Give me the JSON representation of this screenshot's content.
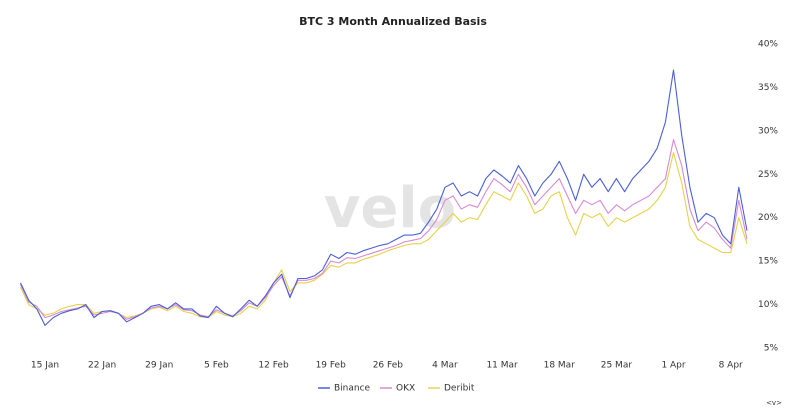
{
  "chart_data": {
    "type": "line",
    "title": "BTC 3 Month Annualized Basis",
    "watermark": "velo",
    "footer_mark": "<v>",
    "categories": [
      null,
      null,
      null,
      "15 Jan",
      null,
      null,
      null,
      null,
      null,
      null,
      "22 Jan",
      null,
      null,
      null,
      null,
      null,
      null,
      "29 Jan",
      null,
      null,
      null,
      null,
      null,
      null,
      "5 Feb",
      null,
      null,
      null,
      null,
      null,
      null,
      "12 Feb",
      null,
      null,
      null,
      null,
      null,
      null,
      "19 Feb",
      null,
      null,
      null,
      null,
      null,
      null,
      "26 Feb",
      null,
      null,
      null,
      null,
      null,
      null,
      "4 Mar",
      null,
      null,
      null,
      null,
      null,
      null,
      "11 Mar",
      null,
      null,
      null,
      null,
      null,
      null,
      "18 Mar",
      null,
      null,
      null,
      null,
      null,
      null,
      "25 Mar",
      null,
      null,
      null,
      null,
      null,
      null,
      "1 Apr",
      null,
      null,
      null,
      null,
      null,
      null,
      "8 Apr",
      null,
      null
    ],
    "series": [
      {
        "name": "Binance",
        "color": "#4a5fd8",
        "values": [
          12.5,
          10.5,
          9.5,
          7.6,
          8.5,
          9.0,
          9.3,
          9.5,
          10.0,
          8.5,
          9.2,
          9.3,
          9.0,
          8.0,
          8.5,
          9.0,
          9.8,
          10.0,
          9.5,
          10.2,
          9.5,
          9.5,
          8.7,
          8.5,
          9.8,
          9.0,
          8.6,
          9.5,
          10.5,
          9.8,
          11.0,
          12.5,
          13.5,
          10.8,
          13.0,
          13.0,
          13.3,
          14.0,
          15.8,
          15.3,
          16.0,
          15.8,
          16.2,
          16.5,
          16.8,
          17.0,
          17.5,
          18.0,
          18.0,
          18.2,
          19.5,
          21.0,
          23.5,
          24.0,
          22.5,
          23.0,
          22.5,
          24.5,
          25.5,
          24.8,
          24.0,
          26.0,
          24.5,
          22.5,
          24.0,
          25.0,
          26.5,
          24.5,
          22.0,
          25.0,
          23.5,
          24.5,
          23.0,
          24.5,
          23.0,
          24.5,
          25.5,
          26.5,
          28.0,
          31.0,
          37.0,
          29.5,
          23.5,
          19.5,
          20.5,
          20.0,
          18.0,
          17.0,
          23.5,
          18.5
        ]
      },
      {
        "name": "OKX",
        "color": "#d98ad4",
        "values": [
          12.3,
          10.3,
          9.8,
          8.5,
          8.8,
          9.2,
          9.4,
          9.6,
          9.8,
          8.8,
          9.0,
          9.2,
          9.0,
          8.3,
          8.6,
          9.0,
          9.6,
          9.8,
          9.5,
          10.0,
          9.4,
          9.3,
          8.8,
          8.6,
          9.4,
          9.0,
          8.7,
          9.3,
          10.2,
          9.8,
          10.8,
          12.2,
          13.2,
          11.0,
          12.8,
          12.8,
          13.0,
          13.6,
          15.0,
          14.8,
          15.4,
          15.3,
          15.6,
          15.9,
          16.2,
          16.5,
          16.8,
          17.2,
          17.4,
          17.6,
          18.5,
          19.8,
          22.0,
          22.5,
          21.0,
          21.5,
          21.2,
          23.0,
          24.5,
          23.8,
          23.0,
          25.0,
          23.5,
          21.5,
          22.5,
          23.5,
          24.5,
          22.5,
          20.5,
          22.0,
          21.5,
          22.0,
          20.5,
          21.5,
          20.8,
          21.5,
          22.0,
          22.5,
          23.5,
          24.5,
          29.0,
          26.0,
          21.0,
          18.5,
          19.5,
          18.8,
          17.5,
          16.5,
          22.0,
          17.5
        ]
      },
      {
        "name": "Deribit",
        "color": "#e6d24a",
        "values": [
          12.0,
          10.0,
          9.5,
          8.8,
          9.0,
          9.5,
          9.8,
          10.0,
          10.0,
          9.0,
          9.2,
          9.3,
          9.0,
          8.5,
          8.7,
          9.0,
          9.5,
          9.7,
          9.3,
          9.8,
          9.2,
          9.0,
          8.6,
          8.5,
          9.2,
          8.8,
          8.6,
          9.0,
          9.8,
          9.5,
          10.5,
          12.5,
          14.0,
          11.5,
          12.5,
          12.5,
          12.8,
          13.5,
          14.5,
          14.3,
          14.8,
          14.8,
          15.2,
          15.5,
          15.8,
          16.2,
          16.5,
          16.8,
          17.0,
          17.0,
          17.5,
          18.5,
          19.5,
          20.5,
          19.5,
          20.0,
          19.8,
          21.5,
          23.0,
          22.5,
          22.0,
          24.0,
          22.5,
          20.5,
          21.0,
          22.5,
          23.0,
          20.0,
          18.0,
          20.5,
          20.0,
          20.5,
          19.0,
          20.0,
          19.5,
          20.0,
          20.5,
          21.0,
          22.0,
          23.5,
          27.5,
          24.0,
          19.0,
          17.5,
          17.0,
          16.5,
          16.0,
          16.0,
          20.0,
          17.0
        ]
      }
    ],
    "ylim": [
      5,
      40
    ],
    "yticks": [
      {
        "value": 5,
        "label": "5%"
      },
      {
        "value": 10,
        "label": "10%"
      },
      {
        "value": 15,
        "label": "15%"
      },
      {
        "value": 20,
        "label": "20%"
      },
      {
        "value": 25,
        "label": "25%"
      },
      {
        "value": 30,
        "label": "30%"
      },
      {
        "value": 35,
        "label": "35%"
      },
      {
        "value": 40,
        "label": "40%"
      }
    ],
    "grid": false,
    "legend": "bottom"
  }
}
